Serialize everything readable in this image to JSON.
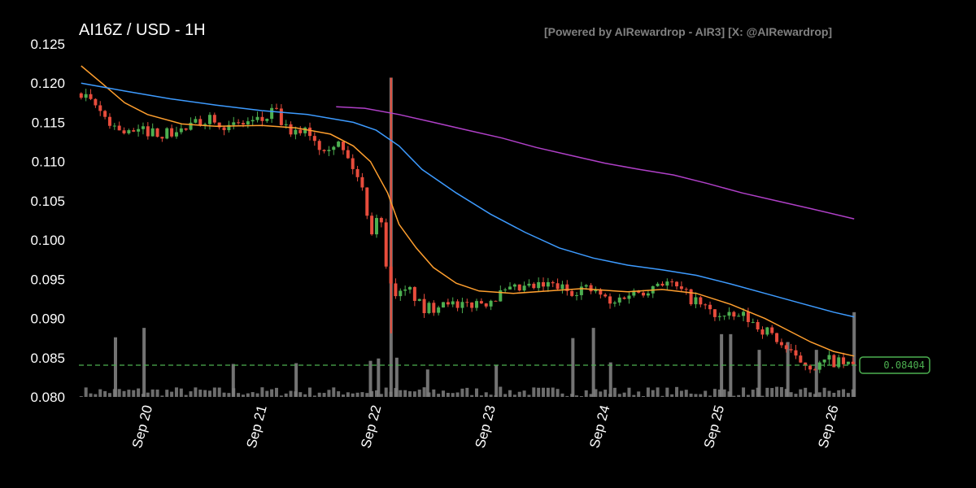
{
  "header": {
    "title": "AI16Z / USD - 1H",
    "watermark": "[Powered by AIRewardrop - AIR3] [X: @AIRewardrop]"
  },
  "colors": {
    "background": "#000000",
    "up_candle": "#4caf50",
    "down_candle": "#e74c3c",
    "volume": "#808080",
    "ma_short": "#ff9f2e",
    "ma_mid": "#3d9bff",
    "ma_long": "#b040c8",
    "last_price_line": "#4caf50"
  },
  "chart_data": {
    "type": "candlestick",
    "timeframe": "1H",
    "pair": "AI16Z / USD",
    "ylim": [
      0.08,
      0.125
    ],
    "yticks": [
      "0.125",
      "0.120",
      "0.115",
      "0.110",
      "0.105",
      "0.100",
      "0.095",
      "0.090",
      "0.085",
      "0.080"
    ],
    "x_range_days": [
      19.4,
      26.2
    ],
    "xticks": [
      {
        "label": "Sep 20",
        "day": 20
      },
      {
        "label": "Sep 21",
        "day": 21
      },
      {
        "label": "Sep 22",
        "day": 22
      },
      {
        "label": "Sep 23",
        "day": 23
      },
      {
        "label": "Sep 24",
        "day": 24
      },
      {
        "label": "Sep 25",
        "day": 25
      },
      {
        "label": "Sep 26",
        "day": 26
      }
    ],
    "price_anchors": [
      [
        19.42,
        0.1187
      ],
      [
        19.6,
        0.1168
      ],
      [
        19.75,
        0.1145
      ],
      [
        19.9,
        0.1135
      ],
      [
        20.05,
        0.114
      ],
      [
        20.2,
        0.1135
      ],
      [
        20.35,
        0.114
      ],
      [
        20.5,
        0.115
      ],
      [
        20.6,
        0.116
      ],
      [
        20.75,
        0.1142
      ],
      [
        20.9,
        0.115
      ],
      [
        21.05,
        0.1152
      ],
      [
        21.15,
        0.1165
      ],
      [
        21.3,
        0.113
      ],
      [
        21.42,
        0.1145
      ],
      [
        21.55,
        0.112
      ],
      [
        21.7,
        0.1125
      ],
      [
        21.85,
        0.109
      ],
      [
        21.93,
        0.106
      ],
      [
        22.0,
        0.101
      ],
      [
        22.05,
        0.1035
      ],
      [
        22.08,
        0.1025
      ],
      [
        22.12,
        0.098
      ],
      [
        22.17,
        0.094
      ],
      [
        22.25,
        0.093
      ],
      [
        22.35,
        0.0935
      ],
      [
        22.45,
        0.091
      ],
      [
        22.55,
        0.0915
      ],
      [
        22.65,
        0.0928
      ],
      [
        22.75,
        0.091
      ],
      [
        22.85,
        0.0918
      ],
      [
        23.0,
        0.0922
      ],
      [
        23.15,
        0.0932
      ],
      [
        23.3,
        0.0937
      ],
      [
        23.45,
        0.094
      ],
      [
        23.6,
        0.0942
      ],
      [
        23.72,
        0.0935
      ],
      [
        23.85,
        0.0939
      ],
      [
        24.0,
        0.0931
      ],
      [
        24.1,
        0.0915
      ],
      [
        24.2,
        0.093
      ],
      [
        24.35,
        0.0935
      ],
      [
        24.45,
        0.094
      ],
      [
        24.5,
        0.0948
      ],
      [
        24.6,
        0.0945
      ],
      [
        24.75,
        0.093
      ],
      [
        24.85,
        0.092
      ],
      [
        25.0,
        0.0905
      ],
      [
        25.1,
        0.09
      ],
      [
        25.25,
        0.0903
      ],
      [
        25.38,
        0.089
      ],
      [
        25.5,
        0.088
      ],
      [
        25.6,
        0.0865
      ],
      [
        25.7,
        0.0848
      ],
      [
        25.8,
        0.0843
      ],
      [
        25.9,
        0.0838
      ],
      [
        26.0,
        0.0847
      ],
      [
        26.1,
        0.0842
      ],
      [
        26.18,
        0.084
      ]
    ],
    "wick_spikes": [
      {
        "day": 22.13,
        "high": 0.1207,
        "low": 0.0881
      }
    ],
    "moving_averages": [
      {
        "color_key": "ma_short",
        "points": [
          [
            19.42,
            0.1222
          ],
          [
            19.6,
            0.12
          ],
          [
            19.8,
            0.1175
          ],
          [
            20.0,
            0.116
          ],
          [
            20.3,
            0.1148
          ],
          [
            20.6,
            0.1145
          ],
          [
            21.0,
            0.1146
          ],
          [
            21.3,
            0.1143
          ],
          [
            21.6,
            0.1135
          ],
          [
            21.8,
            0.112
          ],
          [
            21.95,
            0.11
          ],
          [
            22.1,
            0.106
          ],
          [
            22.2,
            0.102
          ],
          [
            22.35,
            0.099
          ],
          [
            22.5,
            0.0965
          ],
          [
            22.7,
            0.0945
          ],
          [
            22.9,
            0.0935
          ],
          [
            23.2,
            0.0932
          ],
          [
            23.5,
            0.0935
          ],
          [
            23.8,
            0.0938
          ],
          [
            24.2,
            0.0934
          ],
          [
            24.5,
            0.0937
          ],
          [
            24.8,
            0.0932
          ],
          [
            25.1,
            0.0918
          ],
          [
            25.4,
            0.09
          ],
          [
            25.6,
            0.0885
          ],
          [
            25.8,
            0.087
          ],
          [
            26.0,
            0.0858
          ],
          [
            26.18,
            0.0852
          ]
        ]
      },
      {
        "color_key": "ma_mid",
        "points": [
          [
            19.42,
            0.12
          ],
          [
            19.8,
            0.119
          ],
          [
            20.2,
            0.118
          ],
          [
            20.6,
            0.1172
          ],
          [
            21.0,
            0.1165
          ],
          [
            21.4,
            0.116
          ],
          [
            21.8,
            0.115
          ],
          [
            22.0,
            0.114
          ],
          [
            22.2,
            0.112
          ],
          [
            22.4,
            0.109
          ],
          [
            22.7,
            0.106
          ],
          [
            23.0,
            0.1033
          ],
          [
            23.3,
            0.101
          ],
          [
            23.6,
            0.099
          ],
          [
            23.9,
            0.0977
          ],
          [
            24.2,
            0.0968
          ],
          [
            24.5,
            0.0962
          ],
          [
            24.8,
            0.0955
          ],
          [
            25.1,
            0.0944
          ],
          [
            25.4,
            0.0932
          ],
          [
            25.7,
            0.092
          ],
          [
            26.0,
            0.0908
          ],
          [
            26.18,
            0.0902
          ]
        ]
      },
      {
        "color_key": "ma_long",
        "points": [
          [
            21.65,
            0.117
          ],
          [
            21.9,
            0.1168
          ],
          [
            22.2,
            0.116
          ],
          [
            22.5,
            0.115
          ],
          [
            22.8,
            0.114
          ],
          [
            23.1,
            0.113
          ],
          [
            23.4,
            0.1118
          ],
          [
            23.7,
            0.1108
          ],
          [
            24.0,
            0.1098
          ],
          [
            24.3,
            0.109
          ],
          [
            24.6,
            0.1083
          ],
          [
            24.9,
            0.1072
          ],
          [
            25.2,
            0.106
          ],
          [
            25.5,
            0.105
          ],
          [
            25.8,
            0.104
          ],
          [
            26.18,
            0.1027
          ]
        ]
      }
    ],
    "volume_spikes": [
      {
        "day": 19.72,
        "value": 0.0876
      },
      {
        "day": 19.97,
        "value": 0.0888
      },
      {
        "day": 20.75,
        "value": 0.0842
      },
      {
        "day": 21.3,
        "value": 0.0843
      },
      {
        "day": 21.95,
        "value": 0.0846
      },
      {
        "day": 22.02,
        "value": 0.0849
      },
      {
        "day": 22.13,
        "value": 0.1207
      },
      {
        "day": 22.18,
        "value": 0.085
      },
      {
        "day": 22.45,
        "value": 0.0835
      },
      {
        "day": 23.05,
        "value": 0.0841
      },
      {
        "day": 23.72,
        "value": 0.0875
      },
      {
        "day": 23.9,
        "value": 0.0888
      },
      {
        "day": 24.05,
        "value": 0.0844
      },
      {
        "day": 25.02,
        "value": 0.088
      },
      {
        "day": 25.1,
        "value": 0.088
      },
      {
        "day": 25.35,
        "value": 0.086
      },
      {
        "day": 25.6,
        "value": 0.087
      },
      {
        "day": 25.85,
        "value": 0.086
      },
      {
        "day": 26.18,
        "value": 0.0908
      }
    ],
    "last_price": 0.08404,
    "last_price_label": "0.08404"
  }
}
